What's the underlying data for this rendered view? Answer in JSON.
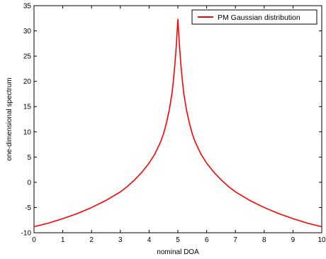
{
  "chart_data": {
    "type": "line",
    "title": "",
    "xlabel": "nominal DOA",
    "ylabel": "one-dimensional spectrum",
    "xlim": [
      0,
      10
    ],
    "ylim": [
      -10,
      35
    ],
    "xticks": [
      0,
      1,
      2,
      3,
      4,
      5,
      6,
      7,
      8,
      9,
      10
    ],
    "yticks": [
      -10,
      -5,
      0,
      5,
      10,
      15,
      20,
      25,
      30,
      35
    ],
    "grid": false,
    "legend_position": "top-right",
    "series": [
      {
        "name": "PM Gaussian distribution",
        "color": "#ff0000",
        "x": [
          0,
          0.5,
          1,
          1.5,
          2,
          2.5,
          3,
          3.25,
          3.5,
          3.75,
          4,
          4.2,
          4.4,
          4.5,
          4.6,
          4.7,
          4.8,
          4.85,
          4.9,
          4.95,
          5,
          5.05,
          5.1,
          5.15,
          5.2,
          5.3,
          5.4,
          5.5,
          5.6,
          5.8,
          6,
          6.25,
          6.5,
          6.75,
          7,
          7.5,
          8,
          8.5,
          9,
          9.5,
          10
        ],
        "values": [
          -8.8,
          -8.1,
          -7.2,
          -6.2,
          -5.0,
          -3.6,
          -1.9,
          -0.8,
          0.5,
          2.0,
          3.8,
          5.6,
          8.0,
          9.6,
          11.7,
          14.3,
          17.8,
          20.5,
          23.6,
          27.5,
          32.3,
          27.5,
          23.6,
          20.5,
          17.8,
          14.3,
          11.7,
          9.6,
          8.0,
          5.6,
          3.8,
          2.0,
          0.5,
          -0.8,
          -1.9,
          -3.6,
          -5.0,
          -6.2,
          -7.2,
          -8.1,
          -8.8
        ]
      }
    ]
  }
}
